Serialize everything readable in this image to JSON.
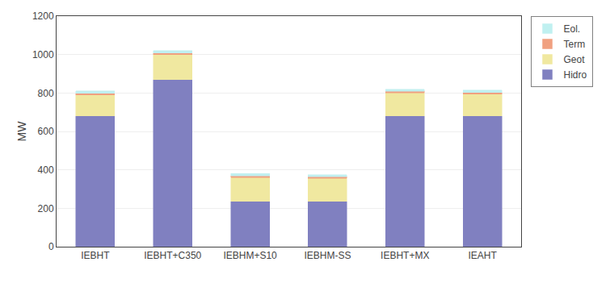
{
  "chart_data": {
    "type": "bar",
    "stacked": true,
    "categories": [
      "IEBHT",
      "IEBHT+C350",
      "IEBHM+S10",
      "IEBHM-SS",
      "IEBHT+MX",
      "IEAHT"
    ],
    "series": [
      {
        "name": "Hidro",
        "color": "#8080c0",
        "values": [
          680,
          870,
          235,
          235,
          680,
          680
        ]
      },
      {
        "name": "Geot",
        "color": "#f0e8a0",
        "values": [
          110,
          130,
          125,
          120,
          120,
          115
        ]
      },
      {
        "name": "Term",
        "color": "#f0a080",
        "values": [
          8,
          8,
          8,
          8,
          8,
          8
        ]
      },
      {
        "name": "Eol.",
        "color": "#c0f0f0",
        "values": [
          12,
          12,
          12,
          12,
          12,
          12
        ]
      }
    ],
    "ylabel": "MW",
    "ylim": [
      0,
      1200
    ],
    "yticks": [
      0,
      200,
      400,
      600,
      800,
      1000,
      1200
    ],
    "grid": true,
    "legend": "upper right"
  }
}
